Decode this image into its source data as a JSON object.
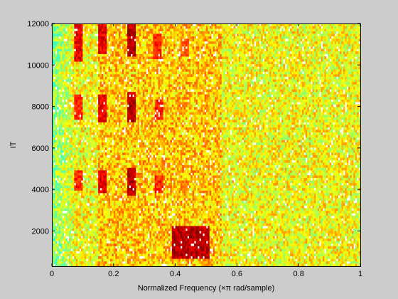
{
  "chart_data": {
    "type": "heatmap",
    "xlabel": "Normalized Frequency  (×π rad/sample)",
    "ylabel": "IT",
    "xlim": [
      0,
      1
    ],
    "ylim": [
      300,
      12000
    ],
    "x_ticks": [
      0,
      0.2,
      0.4,
      0.6,
      0.8,
      1
    ],
    "x_tick_labels": [
      "0",
      "0.2",
      "0.4",
      "0.6",
      "0.8",
      "1"
    ],
    "y_ticks": [
      2000,
      4000,
      6000,
      8000,
      10000,
      12000
    ],
    "y_tick_labels": [
      "2000",
      "4000",
      "6000",
      "8000",
      "10000",
      "12000"
    ],
    "colormap": "jet",
    "background_color": "#cccccc",
    "plot_background": "#ffffff",
    "grid": false,
    "hot_spots": [
      {
        "freq": 0.085,
        "it_from": 10200,
        "it_to": 12000,
        "level": 0.95
      },
      {
        "freq": 0.165,
        "it_from": 10500,
        "it_to": 12000,
        "level": 0.95
      },
      {
        "freq": 0.26,
        "it_from": 10400,
        "it_to": 12000,
        "level": 1.0
      },
      {
        "freq": 0.34,
        "it_from": 10300,
        "it_to": 11500,
        "level": 0.9
      },
      {
        "freq": 0.43,
        "it_from": 10400,
        "it_to": 11300,
        "level": 0.85
      },
      {
        "freq": 0.085,
        "it_from": 7400,
        "it_to": 8600,
        "level": 0.9
      },
      {
        "freq": 0.165,
        "it_from": 7300,
        "it_to": 8600,
        "level": 0.95
      },
      {
        "freq": 0.26,
        "it_from": 7300,
        "it_to": 8700,
        "level": 1.0
      },
      {
        "freq": 0.345,
        "it_from": 7400,
        "it_to": 8400,
        "level": 0.9
      },
      {
        "freq": 0.42,
        "it_from": 7600,
        "it_to": 8200,
        "level": 0.8
      },
      {
        "freq": 0.085,
        "it_from": 3900,
        "it_to": 4900,
        "level": 0.9
      },
      {
        "freq": 0.165,
        "it_from": 3800,
        "it_to": 4900,
        "level": 0.95
      },
      {
        "freq": 0.26,
        "it_from": 3700,
        "it_to": 5000,
        "level": 1.0
      },
      {
        "freq": 0.345,
        "it_from": 3800,
        "it_to": 4700,
        "level": 0.9
      },
      {
        "freq": 0.43,
        "it_from": 3900,
        "it_to": 4500,
        "level": 0.8
      },
      {
        "freq": 0.515,
        "it_from": 4000,
        "it_to": 4400,
        "level": 0.7
      },
      {
        "freq": 0.45,
        "it_from": 700,
        "it_to": 2300,
        "level": 1.0,
        "width": 0.06
      }
    ]
  }
}
